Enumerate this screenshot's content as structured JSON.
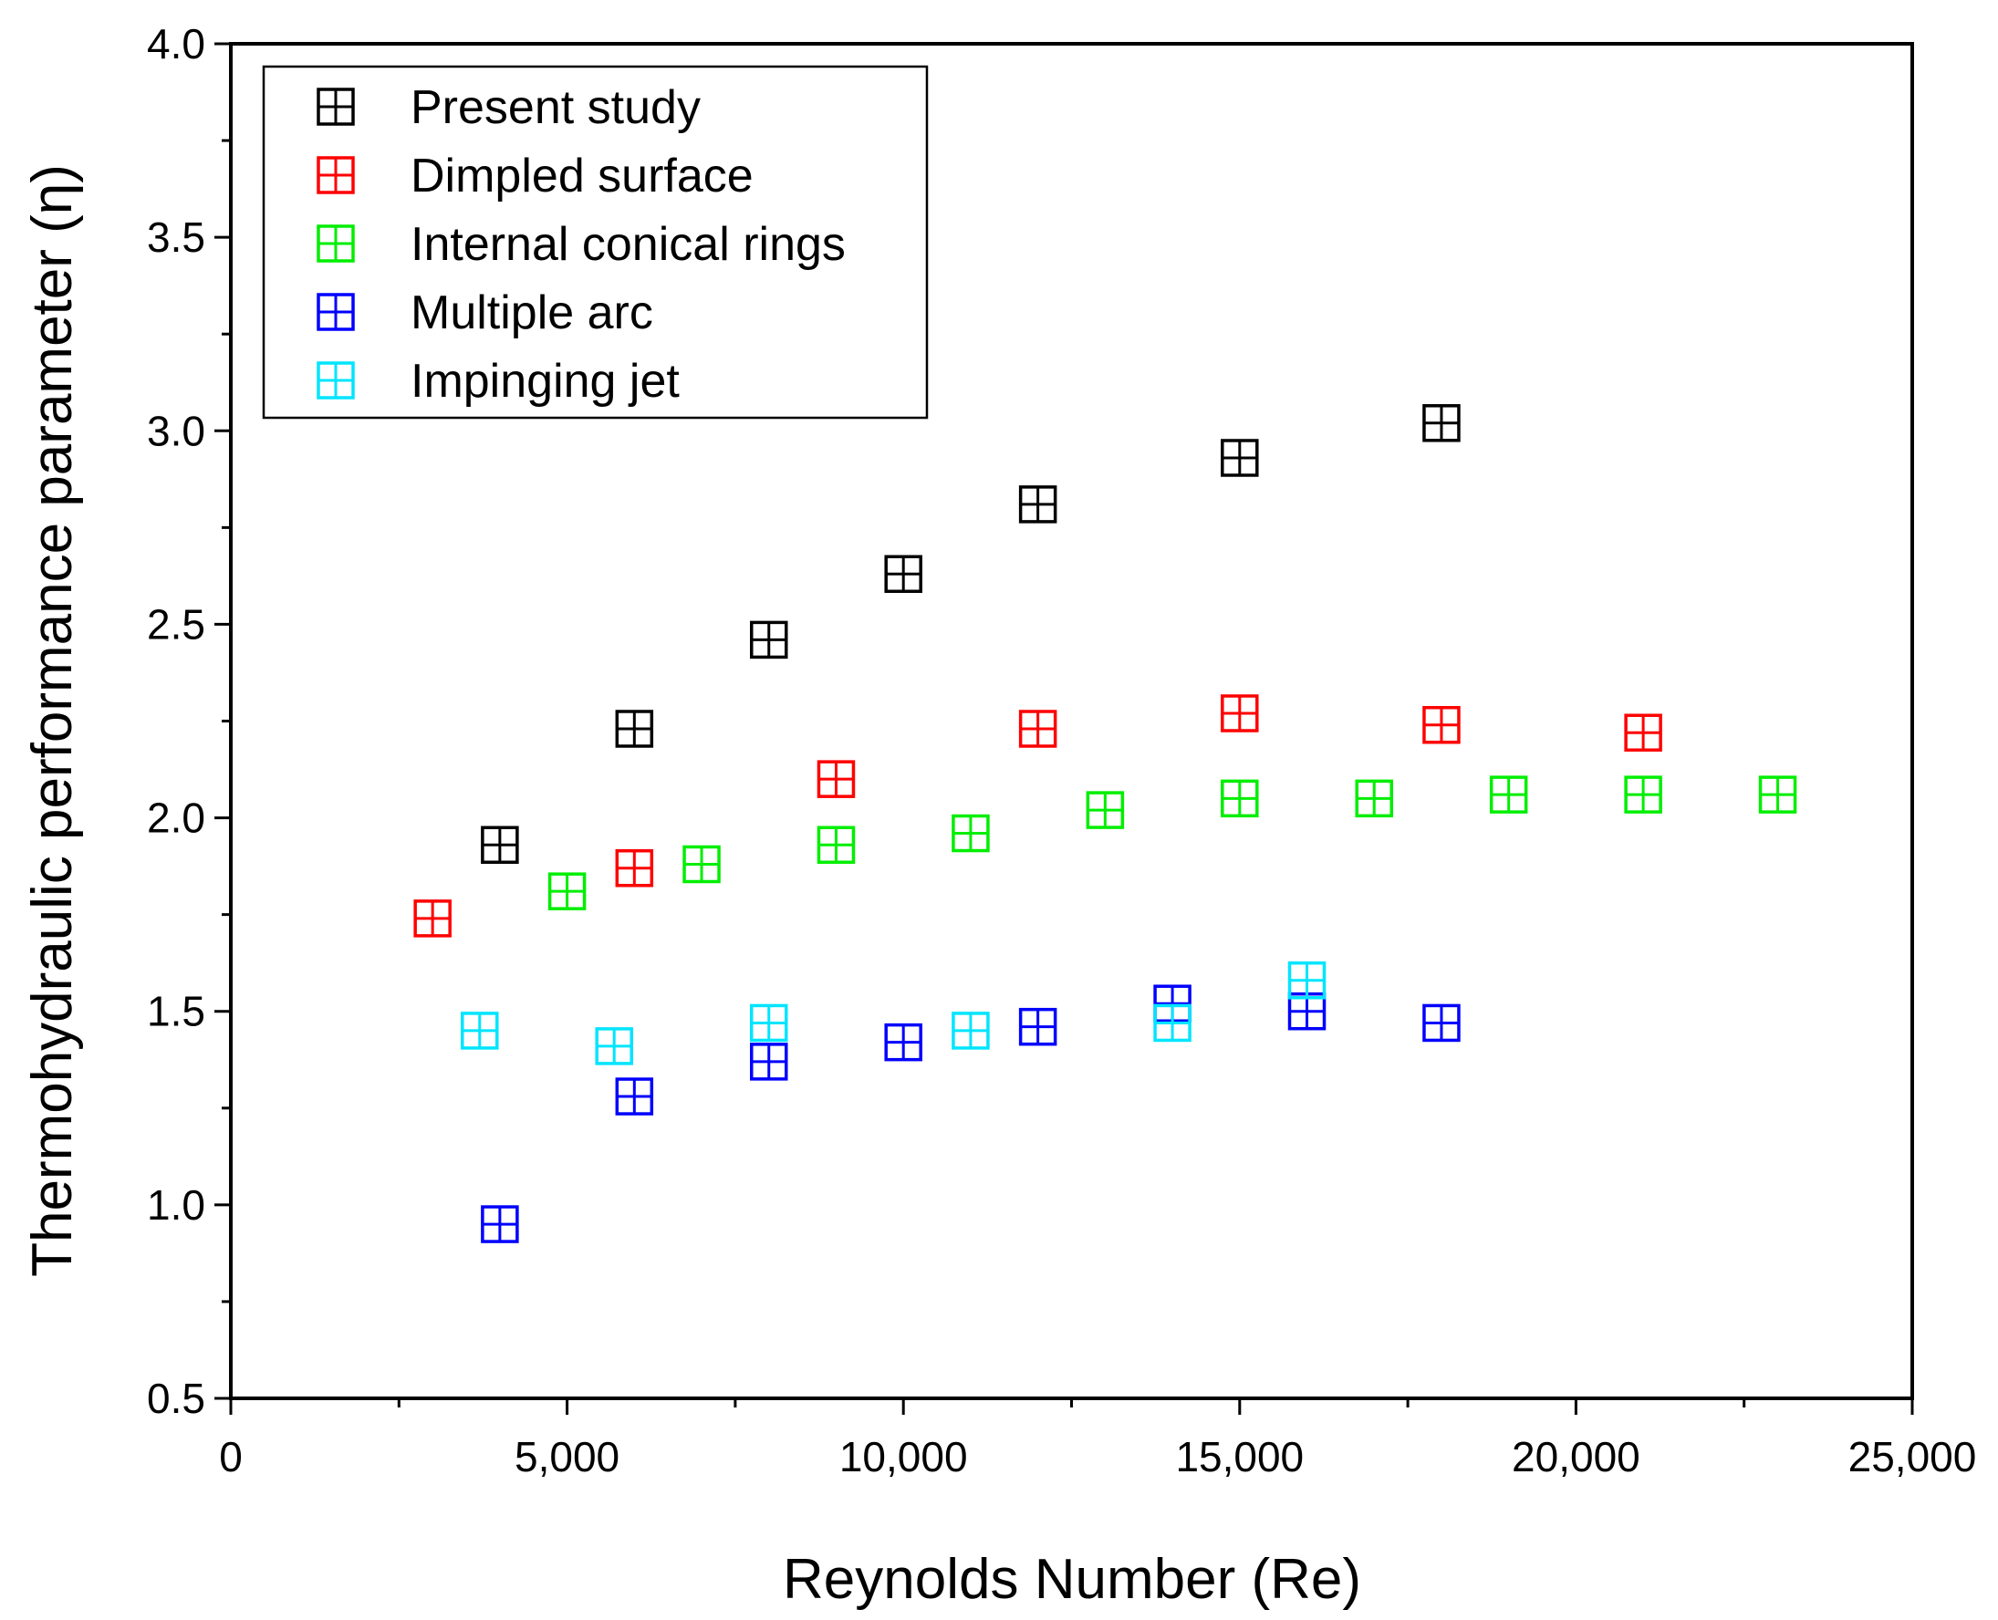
{
  "chart_data": {
    "type": "scatter",
    "xlabel": "Reynolds Number (Re)",
    "ylabel": "Thermohydraulic performance parameter (η)",
    "xlim": [
      0,
      25000
    ],
    "ylim": [
      0.5,
      4.0
    ],
    "xticks": [
      0,
      5000,
      10000,
      15000,
      20000,
      25000
    ],
    "xtick_labels": [
      "0",
      "5,000",
      "10,000",
      "15,000",
      "20,000",
      "25,000"
    ],
    "yticks": [
      0.5,
      1.0,
      1.5,
      2.0,
      2.5,
      3.0,
      3.5,
      4.0
    ],
    "ytick_labels": [
      "0.5",
      "1.0",
      "1.5",
      "2.0",
      "2.5",
      "3.0",
      "3.5",
      "4.0"
    ],
    "grid": false,
    "legend_position": "top-left",
    "marker": "square-cross",
    "series": [
      {
        "name": "Present study",
        "color": "#000000",
        "x": [
          4000,
          6000,
          8000,
          10000,
          12000,
          15000,
          18000
        ],
        "y": [
          1.93,
          2.23,
          2.46,
          2.63,
          2.81,
          2.93,
          3.02
        ]
      },
      {
        "name": "Dimpled surface",
        "color": "#ff0000",
        "x": [
          3000,
          6000,
          9000,
          12000,
          15000,
          18000,
          21000
        ],
        "y": [
          1.74,
          1.87,
          2.1,
          2.23,
          2.27,
          2.24,
          2.22
        ]
      },
      {
        "name": "Internal conical rings",
        "color": "#00ee00",
        "x": [
          5000,
          7000,
          9000,
          11000,
          13000,
          15000,
          17000,
          19000,
          21000,
          23000
        ],
        "y": [
          1.81,
          1.88,
          1.93,
          1.96,
          2.02,
          2.05,
          2.05,
          2.06,
          2.06,
          2.06
        ]
      },
      {
        "name": "Multiple arc",
        "color": "#0000ff",
        "x": [
          4000,
          6000,
          8000,
          10000,
          12000,
          14000,
          16000,
          18000
        ],
        "y": [
          0.95,
          1.28,
          1.37,
          1.42,
          1.46,
          1.52,
          1.5,
          1.47
        ]
      },
      {
        "name": "Impinging jet",
        "color": "#00e5ff",
        "x": [
          3700,
          5700,
          8000,
          11000,
          14000,
          16000
        ],
        "y": [
          1.45,
          1.41,
          1.47,
          1.45,
          1.47,
          1.58
        ]
      }
    ]
  }
}
